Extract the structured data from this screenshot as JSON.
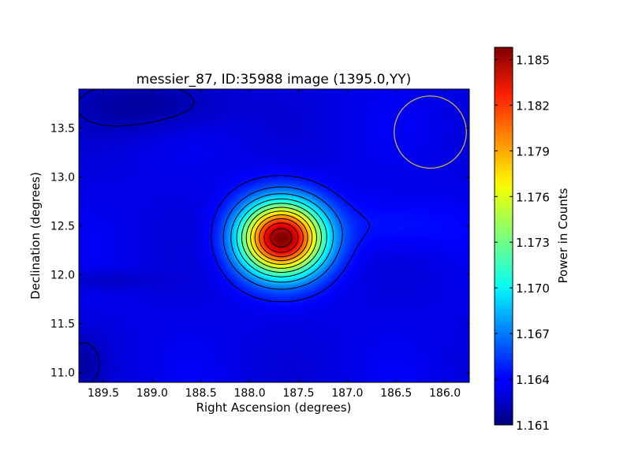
{
  "chart_data": {
    "type": "heatmap",
    "title": "messier_87, ID:35988 image (1395.0,YY)",
    "xlabel": "Right Ascension (degrees)",
    "ylabel": "Declination (degrees)",
    "colorbar_label": "Power in Counts",
    "colormap": "jet",
    "xlim": [
      189.75,
      185.75
    ],
    "ylim": [
      10.9,
      13.9
    ],
    "x_ticks": [
      "189.5",
      "189.0",
      "188.5",
      "188.0",
      "187.5",
      "187.0",
      "186.5",
      "186.0"
    ],
    "y_ticks": [
      "11.0",
      "11.5",
      "12.0",
      "12.5",
      "13.0",
      "13.5"
    ],
    "colorbar_ticks": [
      "1.161",
      "1.164",
      "1.167",
      "1.170",
      "1.173",
      "1.176",
      "1.179",
      "1.182",
      "1.185"
    ],
    "colorbar_range": [
      1.161,
      1.1858
    ],
    "background_level": 1.1635,
    "peak": {
      "ra": 187.68,
      "dec": 12.38,
      "value": 1.1855
    },
    "beam_circle": {
      "ra": 186.15,
      "dec": 13.46,
      "radius_deg": 0.37,
      "color": "#c8b040"
    },
    "contour_levels": [
      1.1625,
      1.1645,
      1.1665,
      1.1685,
      1.1705,
      1.1725,
      1.1745,
      1.1765,
      1.1785,
      1.1805,
      1.1825,
      1.1845
    ]
  }
}
